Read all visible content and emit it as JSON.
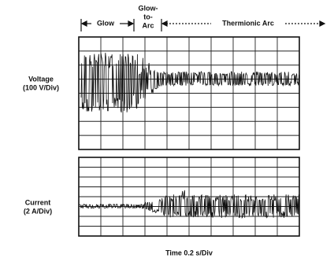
{
  "phases": {
    "glow": "Glow",
    "transition": [
      "Glow-",
      "to-",
      "Arc"
    ],
    "arc": "Thermionic Arc"
  },
  "voltage_panel": {
    "label": "Voltage",
    "scale": "(100 V/Div)"
  },
  "current_panel": {
    "label": "Current",
    "scale": "(2 A/Div)"
  },
  "x_label": "Time 0.2 s/Div"
}
